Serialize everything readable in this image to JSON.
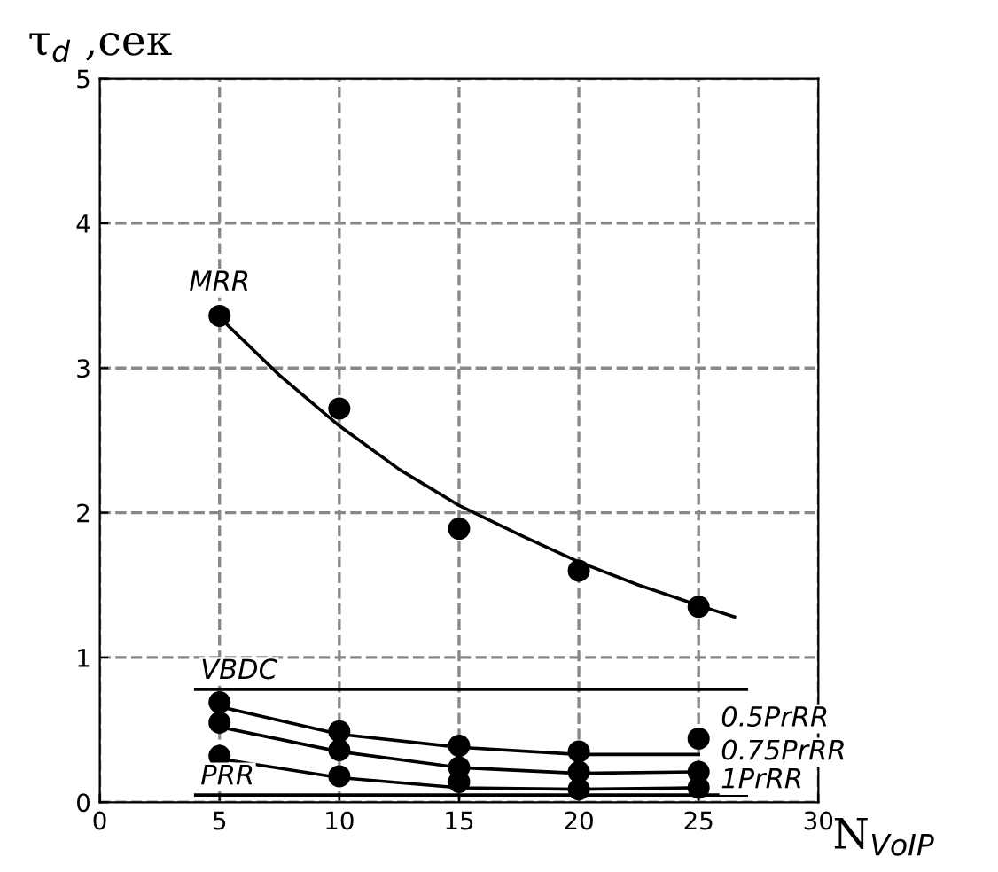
{
  "chart_data": {
    "type": "scatter",
    "xlabel": "N$_{VoIP}$",
    "ylabel": "τ$_{d}$ ,сек",
    "xlim": [
      0,
      30
    ],
    "ylim": [
      0,
      5
    ],
    "xticks": [
      0,
      5,
      10,
      15,
      20,
      25,
      30
    ],
    "yticks": [
      0,
      1,
      2,
      3,
      4,
      5
    ],
    "grid": true,
    "series": [
      {
        "name": "MRR",
        "color": "#000000",
        "marker": "circle",
        "x": [
          5,
          10,
          15,
          20,
          25
        ],
        "values": [
          3.36,
          2.72,
          1.89,
          1.6,
          1.35
        ]
      },
      {
        "type": "line",
        "color": "#000000",
        "marker": "none",
        "x": [
          5,
          7.5,
          10,
          12.5,
          15,
          17.5,
          20,
          22.5,
          25,
          26.5
        ],
        "values": [
          3.35,
          2.95,
          2.6,
          2.3,
          2.05,
          1.85,
          1.66,
          1.5,
          1.36,
          1.28
        ]
      },
      {
        "name": "VBDC",
        "type": "line",
        "color": "#000000",
        "marker": "none",
        "x": [
          4,
          27
        ],
        "values": [
          0.78,
          0.78
        ]
      },
      {
        "name": "PRR",
        "type": "line",
        "color": "#000000",
        "marker": "none",
        "x": [
          4,
          27
        ],
        "values": [
          0.05,
          0.05
        ]
      },
      {
        "name": "0.5PrRR",
        "color": "#000000",
        "marker": "circle",
        "x": [
          5,
          10,
          15,
          20,
          25
        ],
        "values": [
          0.69,
          0.49,
          0.39,
          0.35,
          0.44
        ]
      },
      {
        "type": "line",
        "color": "#000000",
        "marker": "none",
        "x": [
          5,
          10,
          15,
          20,
          25
        ],
        "values": [
          0.66,
          0.47,
          0.38,
          0.33,
          0.33
        ]
      },
      {
        "name": "0.75PrRR",
        "color": "#000000",
        "marker": "circle",
        "x": [
          5,
          10,
          15,
          20,
          25
        ],
        "values": [
          0.55,
          0.36,
          0.24,
          0.21,
          0.21
        ]
      },
      {
        "type": "line",
        "color": "#000000",
        "marker": "none",
        "x": [
          5,
          10,
          15,
          20,
          25
        ],
        "values": [
          0.52,
          0.35,
          0.24,
          0.2,
          0.21
        ]
      },
      {
        "name": "1PrRR",
        "color": "#000000",
        "marker": "circle",
        "x": [
          5,
          10,
          15,
          20,
          25
        ],
        "values": [
          0.32,
          0.18,
          0.14,
          0.09,
          0.1
        ]
      },
      {
        "type": "line",
        "color": "#000000",
        "marker": "none",
        "x": [
          5,
          10,
          15,
          20,
          25
        ],
        "values": [
          0.3,
          0.17,
          0.1,
          0.09,
          0.1
        ]
      }
    ]
  }
}
